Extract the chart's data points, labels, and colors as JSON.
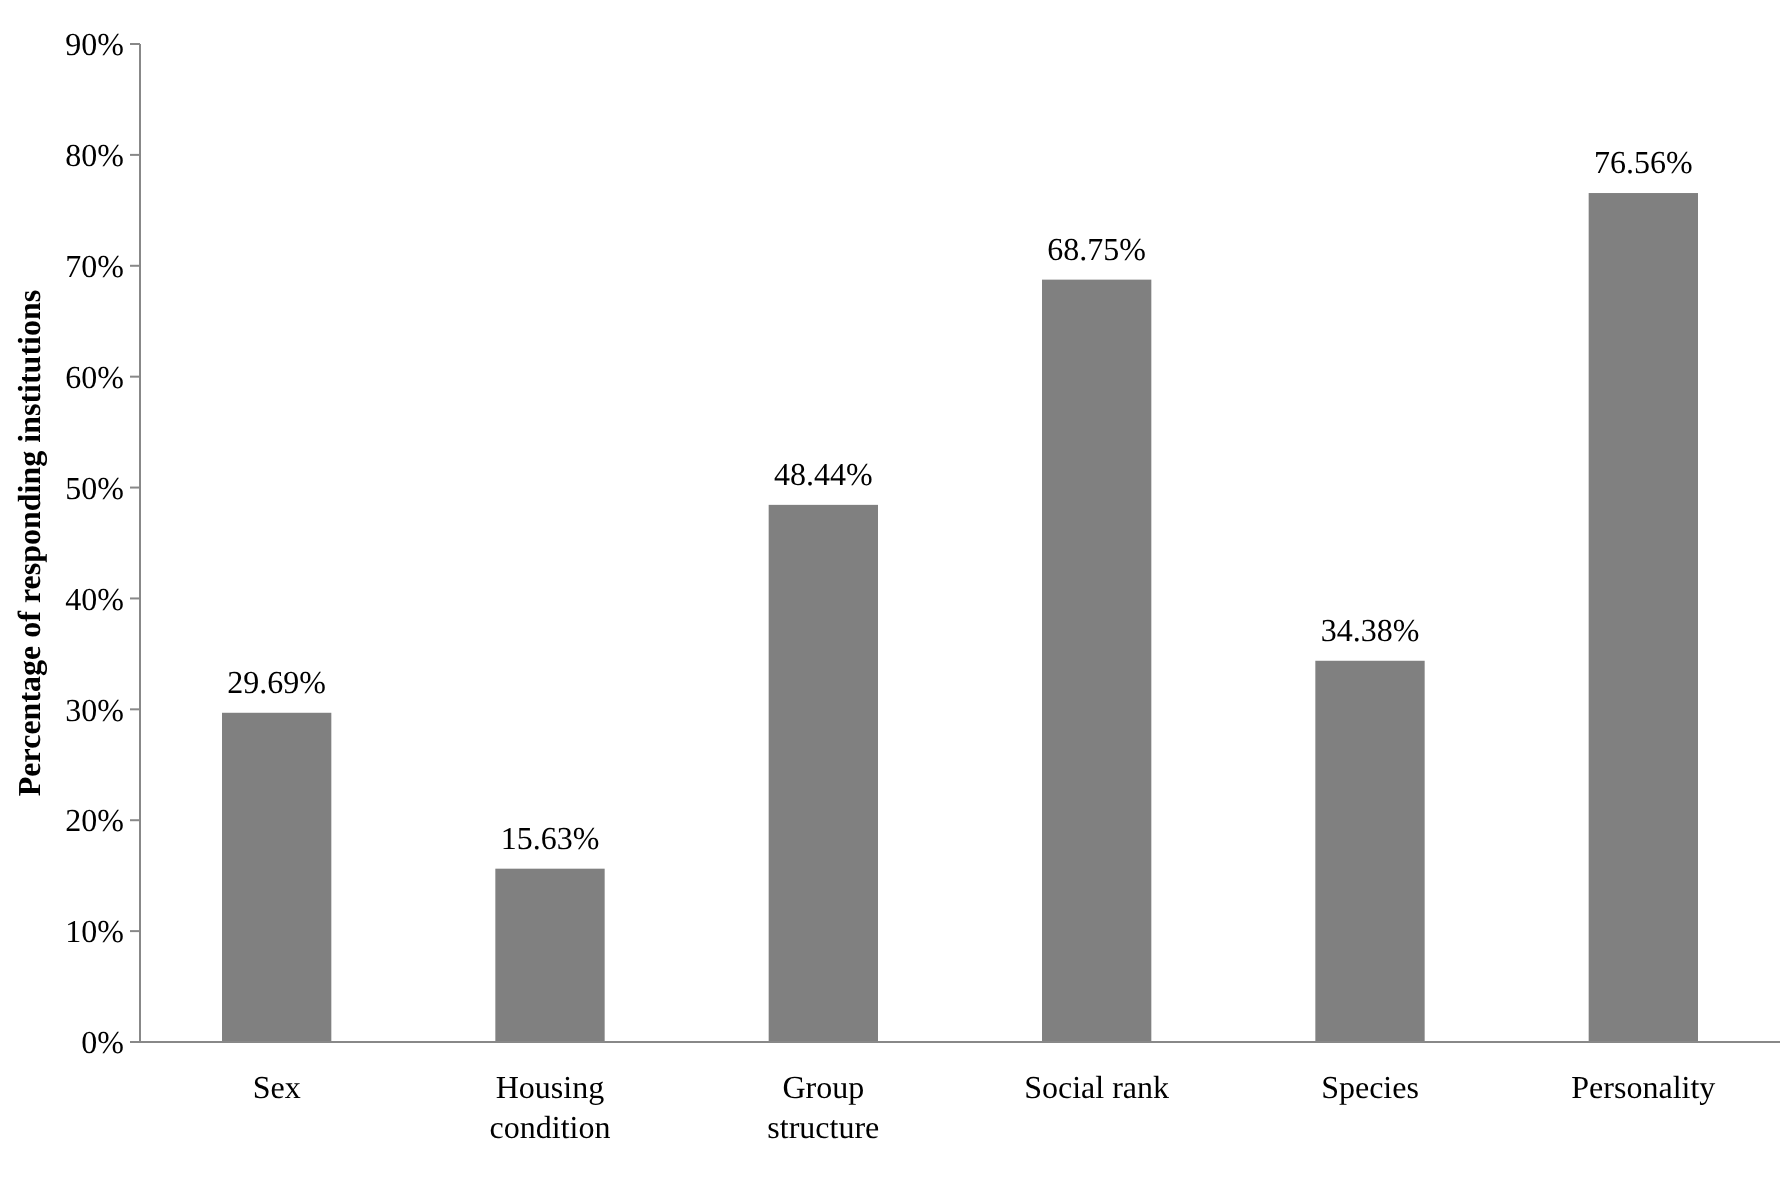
{
  "chart_data": {
    "type": "bar",
    "ylabel": "Percentage of responding institutions",
    "categories": [
      "Sex",
      "Housing condition",
      "Group structure",
      "Social rank",
      "Species",
      "Personality"
    ],
    "values": [
      29.69,
      15.63,
      48.44,
      68.75,
      34.38,
      76.56
    ],
    "value_labels": [
      "29.69%",
      "15.63%",
      "48.44%",
      "68.75%",
      "34.38%",
      "76.56%"
    ],
    "color": "#808080",
    "ylim": [
      0,
      90
    ],
    "yticks": [
      {
        "value": 0,
        "label": "0%"
      },
      {
        "value": 10,
        "label": "10%"
      },
      {
        "value": 20,
        "label": "20%"
      },
      {
        "value": 30,
        "label": "30%"
      },
      {
        "value": 40,
        "label": "40%"
      },
      {
        "value": 50,
        "label": "50%"
      },
      {
        "value": 60,
        "label": "60%"
      },
      {
        "value": 70,
        "label": "70%"
      },
      {
        "value": 80,
        "label": "80%"
      },
      {
        "value": 90,
        "label": "90%"
      }
    ],
    "grid": false
  }
}
